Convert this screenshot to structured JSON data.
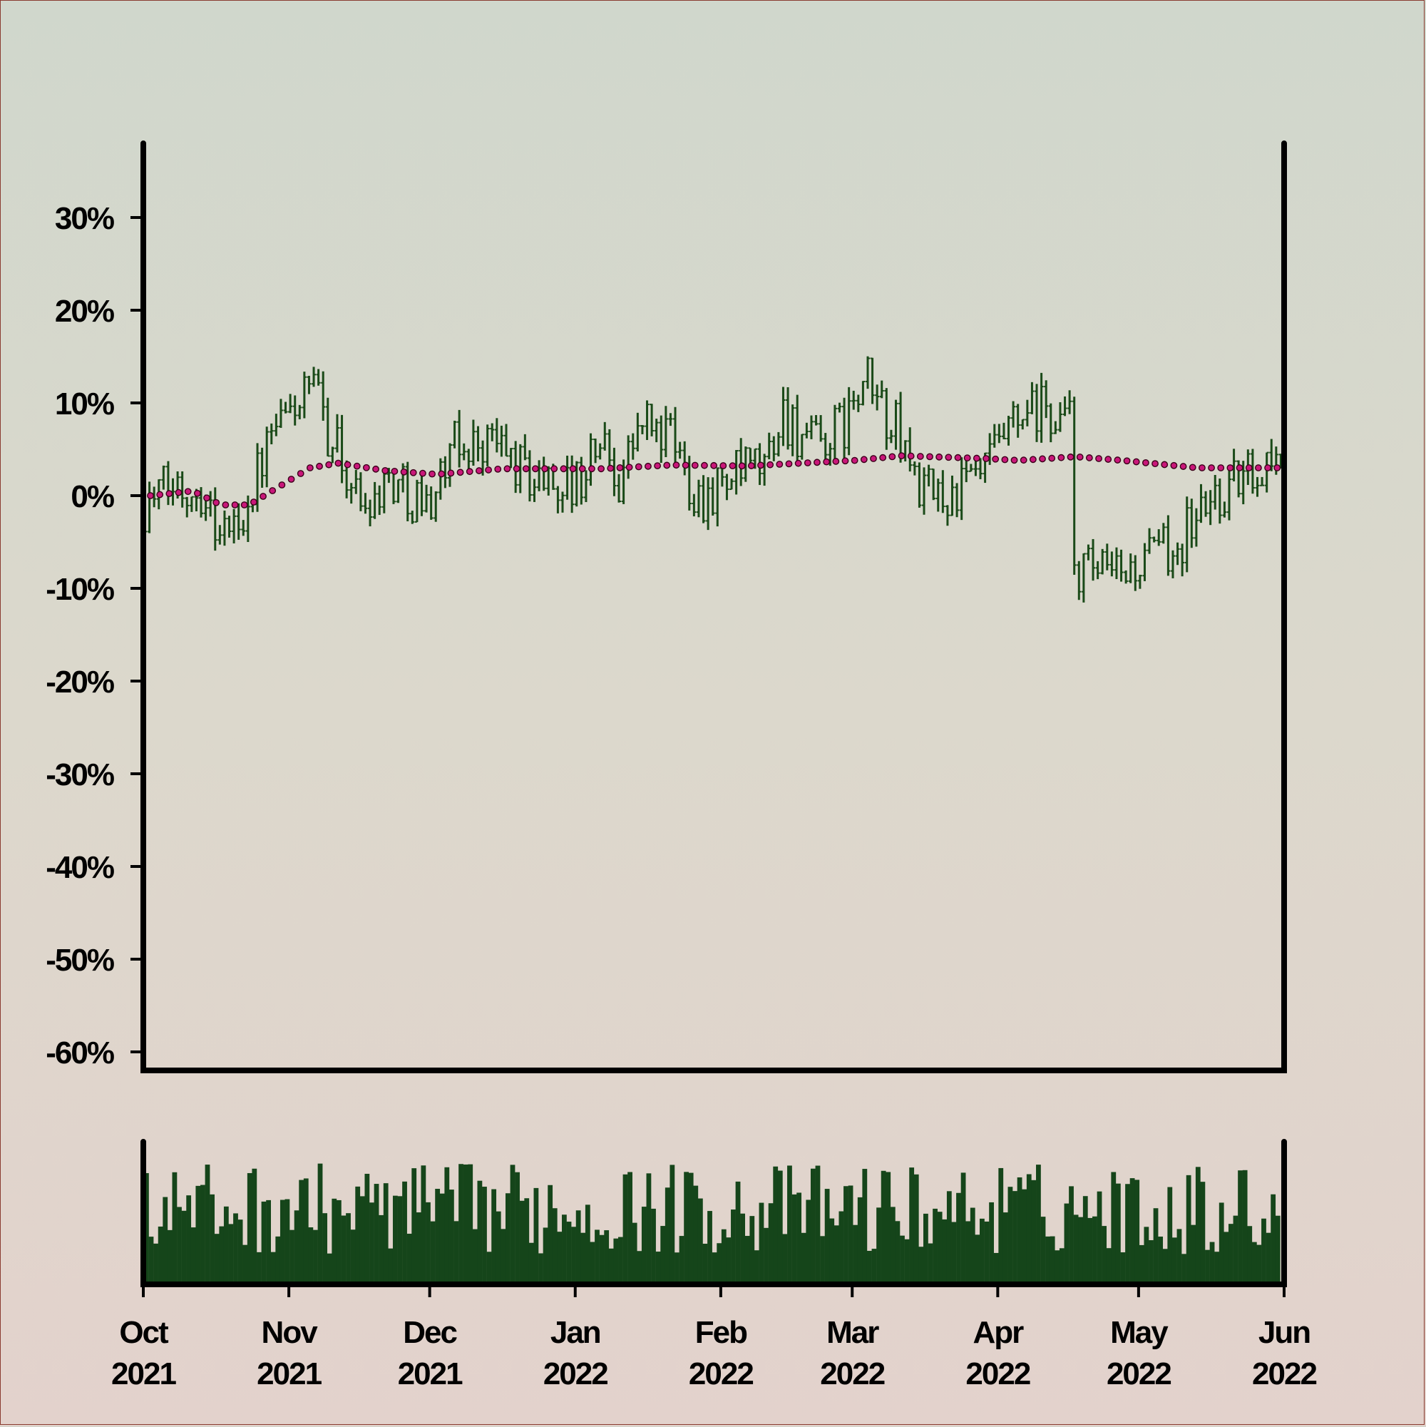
{
  "chart_data": {
    "type": "ohlc",
    "ylim": [
      -62,
      38
    ],
    "y_ticks": [
      "30%",
      "20%",
      "10%",
      "0%",
      "-10%",
      "-20%",
      "-30%",
      "-40%",
      "-50%",
      "-60%"
    ],
    "y_tick_values": [
      30,
      20,
      10,
      0,
      -10,
      -20,
      -30,
      -40,
      -50,
      -60
    ],
    "x_ticks": [
      {
        "month": "Oct",
        "year": "2021",
        "date": "2021-10-01"
      },
      {
        "month": "Nov",
        "year": "2021",
        "date": "2021-11-01"
      },
      {
        "month": "Dec",
        "year": "2021",
        "date": "2021-12-01"
      },
      {
        "month": "Jan",
        "year": "2022",
        "date": "2022-01-01"
      },
      {
        "month": "Feb",
        "year": "2022",
        "date": "2022-02-01"
      },
      {
        "month": "Mar",
        "year": "2022",
        "date": "2022-03-01"
      },
      {
        "month": "Apr",
        "year": "2022",
        "date": "2022-04-01"
      },
      {
        "month": "May",
        "year": "2022",
        "date": "2022-05-01"
      },
      {
        "month": "Jun",
        "year": "2022",
        "date": "2022-06-01"
      }
    ],
    "x_range": [
      "2021-10-01",
      "2022-06-01"
    ],
    "price_series_name": "",
    "moving_average_name": "",
    "price_anchors": [
      {
        "date": "2021-10-01",
        "value": -1
      },
      {
        "date": "2021-10-07",
        "value": 1
      },
      {
        "date": "2021-10-13",
        "value": 1
      },
      {
        "date": "2021-10-17",
        "value": -4
      },
      {
        "date": "2021-10-21",
        "value": -3
      },
      {
        "date": "2021-10-27",
        "value": 5
      },
      {
        "date": "2021-11-02",
        "value": 10
      },
      {
        "date": "2021-11-06",
        "value": 11
      },
      {
        "date": "2021-11-10",
        "value": 6
      },
      {
        "date": "2021-11-16",
        "value": -1
      },
      {
        "date": "2021-11-22",
        "value": 2
      },
      {
        "date": "2021-11-30",
        "value": -1
      },
      {
        "date": "2021-12-06",
        "value": 5
      },
      {
        "date": "2021-12-14",
        "value": 6
      },
      {
        "date": "2021-12-22",
        "value": 2
      },
      {
        "date": "2022-01-01",
        "value": 1
      },
      {
        "date": "2022-01-06",
        "value": 6
      },
      {
        "date": "2022-01-10",
        "value": 2
      },
      {
        "date": "2022-01-15",
        "value": 8
      },
      {
        "date": "2022-01-21",
        "value": 6
      },
      {
        "date": "2022-01-27",
        "value": 0
      },
      {
        "date": "2022-02-04",
        "value": 2
      },
      {
        "date": "2022-02-10",
        "value": 3
      },
      {
        "date": "2022-02-14",
        "value": 9
      },
      {
        "date": "2022-02-20",
        "value": 5
      },
      {
        "date": "2022-02-26",
        "value": 7
      },
      {
        "date": "2022-03-04",
        "value": 12
      },
      {
        "date": "2022-03-10",
        "value": 7
      },
      {
        "date": "2022-03-16",
        "value": 0
      },
      {
        "date": "2022-03-22",
        "value": 0
      },
      {
        "date": "2022-03-28",
        "value": 2
      },
      {
        "date": "2022-04-04",
        "value": 7
      },
      {
        "date": "2022-04-10",
        "value": 9
      },
      {
        "date": "2022-04-16",
        "value": 8
      },
      {
        "date": "2022-04-17",
        "value": -8
      },
      {
        "date": "2022-04-25",
        "value": -9
      },
      {
        "date": "2022-05-03",
        "value": -7
      },
      {
        "date": "2022-05-09",
        "value": -5
      },
      {
        "date": "2022-05-15",
        "value": -1
      },
      {
        "date": "2022-05-23",
        "value": 2
      },
      {
        "date": "2022-06-01",
        "value": 5
      }
    ],
    "moving_average_anchors": [
      {
        "date": "2021-10-01",
        "value": 0
      },
      {
        "date": "2021-10-10",
        "value": 0.5
      },
      {
        "date": "2021-10-16",
        "value": -1
      },
      {
        "date": "2021-10-22",
        "value": -1
      },
      {
        "date": "2021-11-04",
        "value": 3
      },
      {
        "date": "2021-11-10",
        "value": 3.5
      },
      {
        "date": "2021-11-20",
        "value": 2.7
      },
      {
        "date": "2021-12-01",
        "value": 2.3
      },
      {
        "date": "2021-12-15",
        "value": 2.9
      },
      {
        "date": "2022-01-05",
        "value": 2.9
      },
      {
        "date": "2022-01-20",
        "value": 3.3
      },
      {
        "date": "2022-02-05",
        "value": 3.2
      },
      {
        "date": "2022-02-28",
        "value": 3.8
      },
      {
        "date": "2022-03-10",
        "value": 4.3
      },
      {
        "date": "2022-03-28",
        "value": 4.0
      },
      {
        "date": "2022-04-04",
        "value": 3.8
      },
      {
        "date": "2022-04-16",
        "value": 4.2
      },
      {
        "date": "2022-04-26",
        "value": 3.8
      },
      {
        "date": "2022-05-12",
        "value": 3.0
      },
      {
        "date": "2022-06-01",
        "value": 3.0
      }
    ],
    "colors": {
      "price": "#1a4a18",
      "volume": "#15451a",
      "moving_average_fill": "#c9177a",
      "moving_average_edge": "#3a0018",
      "axes": "#000000"
    },
    "grid": false,
    "volume_panel": true
  }
}
